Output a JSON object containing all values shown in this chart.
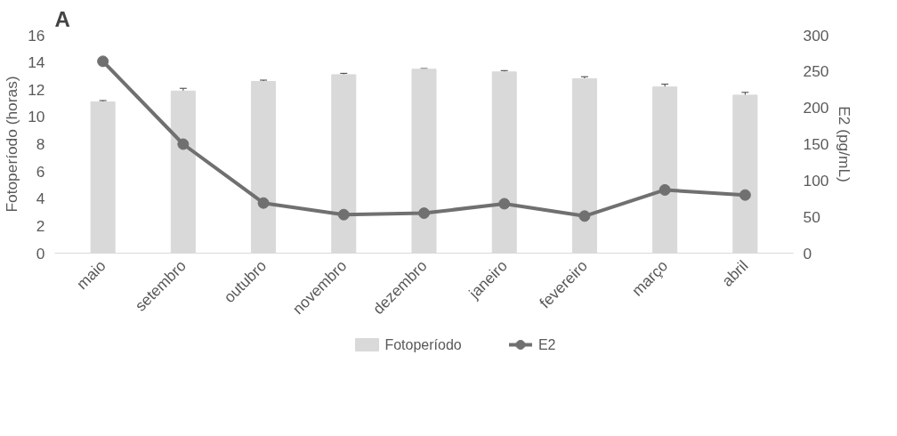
{
  "chart_data": {
    "type": "bar",
    "title": "A",
    "ylabel": "Fotoperíodo (horas)",
    "y2label": "E2 (pg/mL)",
    "categories": [
      "maio",
      "setembro",
      "outubro",
      "novembro",
      "dezembro",
      "janeiro",
      "fevereiro",
      "março",
      "abril"
    ],
    "series": [
      {
        "name": "Fotoperíodo",
        "color": "#d9d9d9",
        "values": [
          11.1,
          11.9,
          12.6,
          13.1,
          13.5,
          13.3,
          12.8,
          12.2,
          11.6
        ],
        "errors": [
          0.1,
          0.2,
          0.1,
          0.1,
          0.05,
          0.1,
          0.15,
          0.2,
          0.2
        ]
      },
      {
        "name": "E2",
        "type": "line",
        "axis": "y2",
        "color": "#707070",
        "marker": "circle",
        "values": [
          264,
          150,
          69,
          53,
          55,
          68,
          51,
          87,
          80
        ]
      }
    ],
    "ylim": [
      0,
      16
    ],
    "yticks": [
      0,
      2,
      4,
      6,
      8,
      10,
      12,
      14,
      16
    ],
    "y2lim": [
      0,
      300
    ],
    "y2ticks": [
      0,
      50,
      100,
      150,
      200,
      250,
      300
    ],
    "grid": false,
    "legend": "bottom"
  }
}
